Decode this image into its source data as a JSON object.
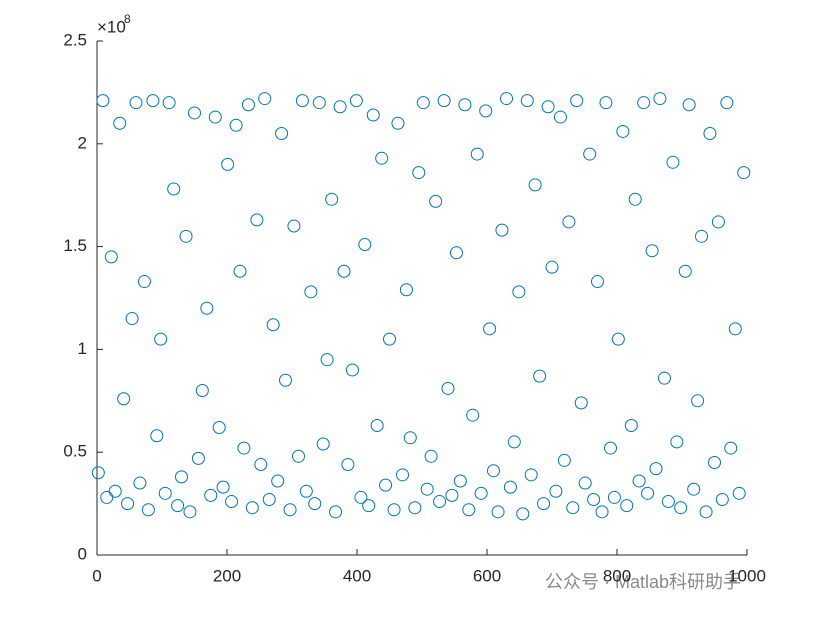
{
  "chart_data": {
    "type": "scatter",
    "y_exponent_base": "×10",
    "y_exponent": "8",
    "watermark": "公众号 · Matlab科研助手",
    "color": "#0072BD",
    "xlim": [
      0,
      1000
    ],
    "xticks": [
      0,
      200,
      400,
      600,
      800,
      1000
    ],
    "ylim": [
      0,
      2.5
    ],
    "yticks": [
      0,
      0.5,
      1,
      1.5,
      2,
      2.5
    ],
    "grid": false,
    "x": [
      2,
      9,
      15,
      22,
      28,
      35,
      41,
      47,
      54,
      60,
      66,
      73,
      79,
      86,
      92,
      98,
      105,
      111,
      118,
      124,
      130,
      137,
      143,
      150,
      156,
      162,
      169,
      175,
      182,
      188,
      194,
      201,
      207,
      214,
      220,
      226,
      233,
      239,
      246,
      252,
      258,
      265,
      271,
      278,
      284,
      290,
      297,
      303,
      310,
      316,
      322,
      329,
      335,
      342,
      348,
      354,
      361,
      367,
      374,
      380,
      386,
      393,
      399,
      406,
      412,
      418,
      425,
      431,
      438,
      444,
      450,
      457,
      463,
      470,
      476,
      482,
      489,
      495,
      502,
      508,
      514,
      521,
      527,
      534,
      540,
      546,
      553,
      559,
      566,
      572,
      578,
      585,
      591,
      598,
      604,
      610,
      617,
      623,
      630,
      636,
      642,
      649,
      655,
      662,
      668,
      674,
      681,
      687,
      694,
      700,
      706,
      713,
      719,
      726,
      732,
      738,
      745,
      751,
      758,
      764,
      770,
      777,
      783,
      790,
      796,
      802,
      809,
      815,
      822,
      828,
      834,
      841,
      847,
      854,
      860,
      866,
      873,
      879,
      886,
      892,
      898,
      905,
      911,
      918,
      924,
      930,
      937,
      943,
      950,
      956,
      962,
      969,
      975,
      982,
      988,
      995
    ],
    "values": [
      0.4,
      2.21,
      0.28,
      1.45,
      0.31,
      2.1,
      0.76,
      0.25,
      1.15,
      2.2,
      0.35,
      1.33,
      0.22,
      2.21,
      0.58,
      1.05,
      0.3,
      2.2,
      1.78,
      0.24,
      0.38,
      1.55,
      0.21,
      2.15,
      0.47,
      0.8,
      1.2,
      0.29,
      2.13,
      0.62,
      0.33,
      1.9,
      0.26,
      2.09,
      1.38,
      0.52,
      2.19,
      0.23,
      1.63,
      0.44,
      2.22,
      0.27,
      1.12,
      0.36,
      2.05,
      0.85,
      0.22,
      1.6,
      0.48,
      2.21,
      0.31,
      1.28,
      0.25,
      2.2,
      0.54,
      0.95,
      1.73,
      0.21,
      2.18,
      1.38,
      0.44,
      0.9,
      2.21,
      0.28,
      1.51,
      0.24,
      2.14,
      0.63,
      1.93,
      0.34,
      1.05,
      0.22,
      2.1,
      0.39,
      1.29,
      0.57,
      0.23,
      1.86,
      2.2,
      0.32,
      0.48,
      1.72,
      0.26,
      2.21,
      0.81,
      0.29,
      1.47,
      0.36,
      2.19,
      0.22,
      0.68,
      1.95,
      0.3,
      2.16,
      1.1,
      0.41,
      0.21,
      1.58,
      2.22,
      0.33,
      0.55,
      1.28,
      0.2,
      2.21,
      0.39,
      1.8,
      0.87,
      0.25,
      2.18,
      1.4,
      0.31,
      2.13,
      0.46,
      1.62,
      0.23,
      2.21,
      0.74,
      0.35,
      1.95,
      0.27,
      1.33,
      0.21,
      2.2,
      0.52,
      0.28,
      1.05,
      2.06,
      0.24,
      0.63,
      1.73,
      0.36,
      2.2,
      0.3,
      1.48,
      0.42,
      2.22,
      0.86,
      0.26,
      1.91,
      0.55,
      0.23,
      1.38,
      2.19,
      0.32,
      0.75,
      1.55,
      0.21,
      2.05,
      0.45,
      1.62,
      0.27,
      2.2,
      0.52,
      1.1,
      0.3,
      1.86
    ]
  }
}
